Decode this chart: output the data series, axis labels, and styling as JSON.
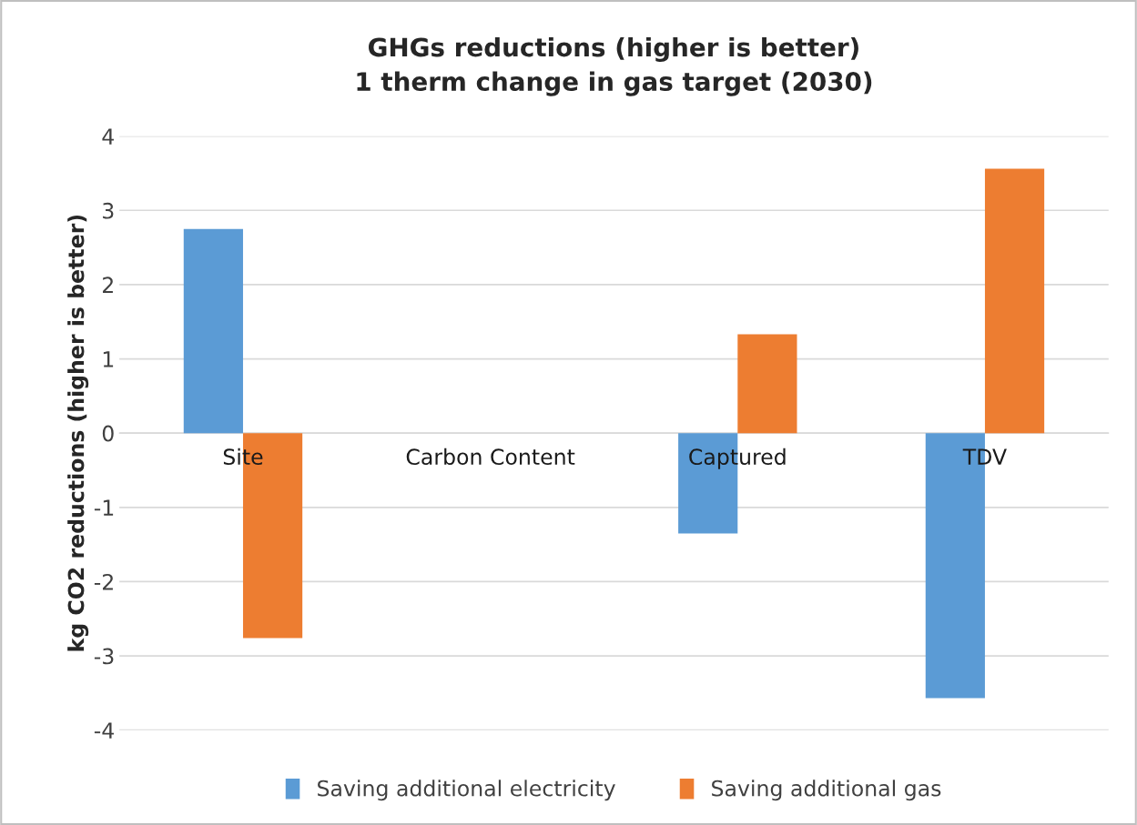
{
  "chart_data": {
    "type": "bar",
    "title": "GHGs reductions (higher is better)\n1 therm change in gas target (2030)",
    "ylabel": "kg CO2 reductions (higher is better)",
    "categories": [
      "Site",
      "Carbon Content",
      "Captured",
      "TDV"
    ],
    "series": [
      {
        "name": "Saving additional electricity",
        "color": "#5b9bd5",
        "values": [
          2.75,
          0,
          -1.35,
          -3.57
        ]
      },
      {
        "name": "Saving additional gas",
        "color": "#ed7d31",
        "values": [
          -2.76,
          0,
          1.33,
          3.56
        ]
      }
    ],
    "ylim": [
      -4,
      4
    ],
    "yticks": [
      -4,
      -3,
      -2,
      -1,
      0,
      1,
      2,
      3,
      4
    ],
    "grid": "y",
    "legend": "bottom"
  }
}
